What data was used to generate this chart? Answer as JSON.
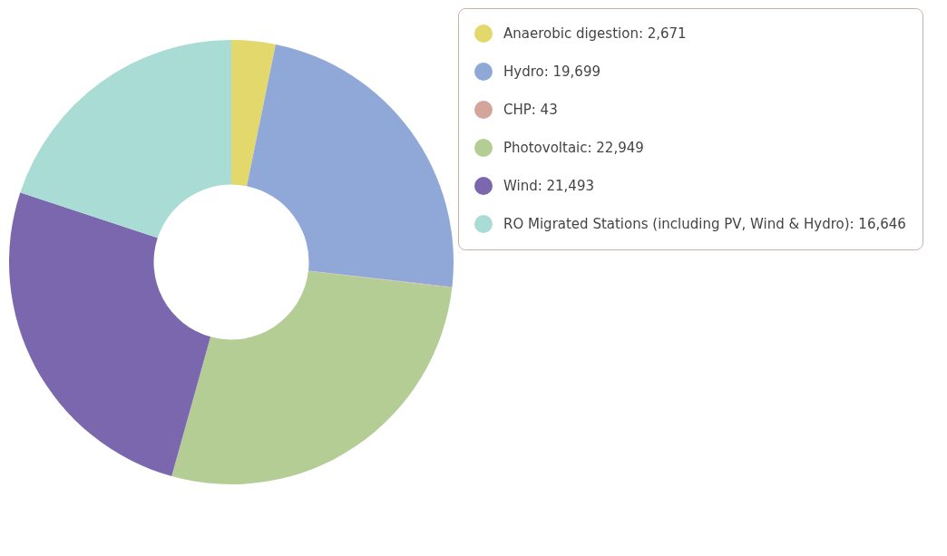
{
  "chart_data": {
    "type": "donut",
    "categories": [
      "Anaerobic digestion: 2,671",
      "Hydro: 19,699",
      "CHP: 43",
      "Photovoltaic: 22,949",
      "Wind: 21,493",
      "RO Migrated Stations (including PV, Wind & Hydro): 16,646"
    ],
    "values": [
      2671,
      19699,
      43,
      22949,
      21493,
      16646
    ],
    "colors": [
      "#e3d86b",
      "#8fa8d8",
      "#d4a59a",
      "#b3cd94",
      "#7b67ad",
      "#a9dcd4"
    ],
    "legend": "right"
  }
}
